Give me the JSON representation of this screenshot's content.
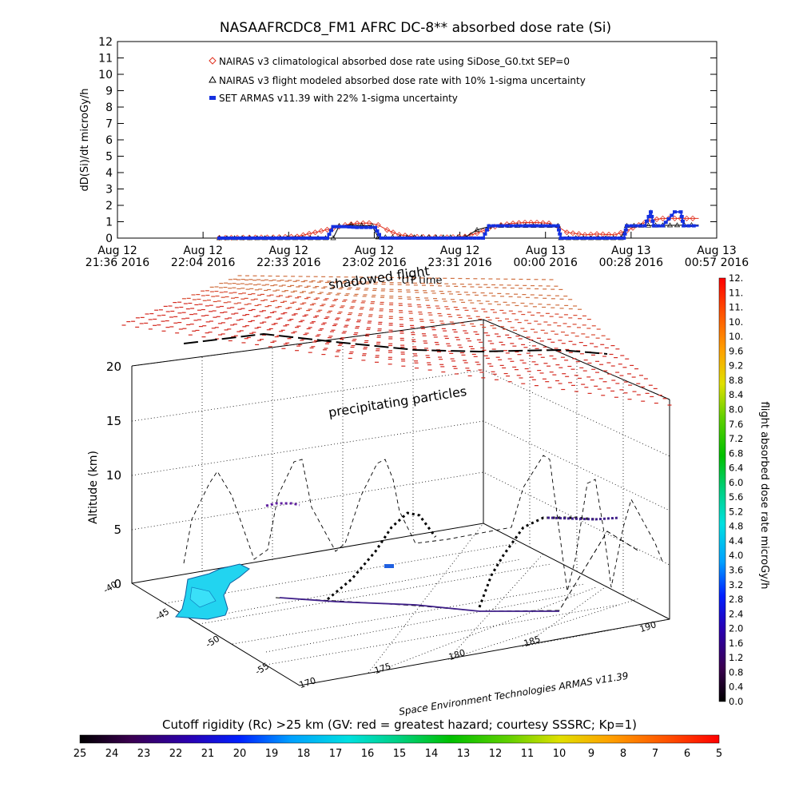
{
  "chart_data": [
    {
      "type": "line",
      "title": "NASAAFRCDC8_FM1 AFRC DC-8** absorbed dose rate (Si)",
      "ylabel": "dD(Si)/dt microGy/h",
      "xlabel": "UT time",
      "ylim": [
        0,
        12
      ],
      "yticks": [
        "0",
        "1",
        "2",
        "3",
        "4",
        "5",
        "6",
        "7",
        "8",
        "9",
        "10",
        "11",
        "12"
      ],
      "xtick_labels": [
        {
          "line1": "Aug 12",
          "line2": "21:36 2016"
        },
        {
          "line1": "Aug 12",
          "line2": "22:04 2016"
        },
        {
          "line1": "Aug 12",
          "line2": "22:33 2016"
        },
        {
          "line1": "Aug 12",
          "line2": "23:02 2016"
        },
        {
          "line1": "Aug 12",
          "line2": "23:31 2016"
        },
        {
          "line1": "Aug 13",
          "line2": "00:00 2016"
        },
        {
          "line1": "Aug 13",
          "line2": "00:28 2016"
        },
        {
          "line1": "Aug 13",
          "line2": "00:57 2016"
        }
      ],
      "series": [
        {
          "name": "NAIRAS v3 climatological absorbed dose rate using SiDose_G0.txt SEP=0",
          "color": "#e0301e",
          "marker": "diamond",
          "points": [
            [
              0.17,
              0.02
            ],
            [
              0.26,
              0.05
            ],
            [
              0.3,
              0.1
            ],
            [
              0.33,
              0.35
            ],
            [
              0.36,
              0.6
            ],
            [
              0.38,
              0.8
            ],
            [
              0.4,
              0.9
            ],
            [
              0.42,
              0.92
            ],
            [
              0.435,
              0.8
            ],
            [
              0.45,
              0.5
            ],
            [
              0.47,
              0.2
            ],
            [
              0.5,
              0.08
            ],
            [
              0.55,
              0.05
            ],
            [
              0.58,
              0.1
            ],
            [
              0.6,
              0.3
            ],
            [
              0.62,
              0.6
            ],
            [
              0.64,
              0.8
            ],
            [
              0.66,
              0.9
            ],
            [
              0.68,
              0.95
            ],
            [
              0.7,
              0.95
            ],
            [
              0.72,
              0.9
            ],
            [
              0.735,
              0.7
            ],
            [
              0.75,
              0.35
            ],
            [
              0.78,
              0.2
            ],
            [
              0.8,
              0.25
            ],
            [
              0.83,
              0.2
            ],
            [
              0.85,
              0.45
            ],
            [
              0.87,
              0.8
            ],
            [
              0.89,
              1.1
            ],
            [
              0.91,
              1.2
            ],
            [
              0.93,
              1.2
            ],
            [
              0.96,
              1.2
            ],
            [
              0.97,
              1.2
            ]
          ]
        },
        {
          "name": "NAIRAS v3 flight modeled absorbed dose rate with 10% 1-sigma uncertainty",
          "color": "#000000",
          "marker": "triangle",
          "points": [
            [
              0.17,
              0.0
            ],
            [
              0.36,
              0.0
            ],
            [
              0.37,
              0.75
            ],
            [
              0.39,
              0.8
            ],
            [
              0.425,
              0.75
            ],
            [
              0.435,
              0.05
            ],
            [
              0.58,
              0.05
            ],
            [
              0.6,
              0.5
            ],
            [
              0.62,
              0.7
            ],
            [
              0.64,
              0.75
            ],
            [
              0.735,
              0.75
            ],
            [
              0.74,
              0.0
            ],
            [
              0.84,
              0.0
            ],
            [
              0.85,
              0.75
            ],
            [
              0.97,
              0.8
            ]
          ]
        },
        {
          "name": "SET ARMAS v11.39 with 22% 1-sigma uncertainty",
          "color": "#1530e0",
          "marker": "square",
          "points": [
            [
              0.17,
              0.0
            ],
            [
              0.35,
              0.0
            ],
            [
              0.36,
              0.7
            ],
            [
              0.38,
              0.7
            ],
            [
              0.4,
              0.65
            ],
            [
              0.43,
              0.65
            ],
            [
              0.44,
              0.0
            ],
            [
              0.61,
              0.0
            ],
            [
              0.62,
              0.75
            ],
            [
              0.65,
              0.75
            ],
            [
              0.68,
              0.75
            ],
            [
              0.7,
              0.75
            ],
            [
              0.735,
              0.75
            ],
            [
              0.74,
              0.0
            ],
            [
              0.845,
              0.0
            ],
            [
              0.85,
              0.75
            ],
            [
              0.88,
              0.75
            ],
            [
              0.89,
              1.6
            ],
            [
              0.895,
              0.75
            ],
            [
              0.91,
              0.75
            ],
            [
              0.93,
              1.6
            ],
            [
              0.94,
              1.6
            ],
            [
              0.945,
              0.75
            ],
            [
              0.97,
              0.75
            ]
          ]
        }
      ]
    },
    {
      "type": "scatter",
      "zlabel": "Altitude (km)",
      "zticks": [
        "0",
        "5",
        "10",
        "15",
        "20"
      ],
      "y_ticks": [
        "-40",
        "-45",
        "-50",
        "-55"
      ],
      "x_ticks": [
        "170",
        "175",
        "180",
        "185",
        "190"
      ],
      "annotations": [
        "shadowed flight",
        "precipitating particles"
      ],
      "credit": "Space Environment Technologies ARMAS v11.39"
    },
    {
      "type": "heatmap",
      "colorbar_label": "flight absorbed dose rate microGy/h",
      "colorbar_ticks": [
        "0.0",
        "0.4",
        "0.8",
        "1.2",
        "1.6",
        "2.0",
        "2.4",
        "2.8",
        "3.2",
        "3.6",
        "4.0",
        "4.4",
        "4.8",
        "5.2",
        "5.6",
        "6.0",
        "6.4",
        "6.8",
        "7.2",
        "7.6",
        "8.0",
        "8.4",
        "8.8",
        "9.2",
        "9.6",
        "10.",
        "10.",
        "11.",
        "11.",
        "12."
      ],
      "range": [
        0,
        12
      ]
    },
    {
      "type": "heatmap",
      "colorbar_label": "Cutoff rigidity (Rc) >25 km (GV: red = greatest hazard; courtesy SSSRC; Kp=1)",
      "colorbar_ticks": [
        "25",
        "24",
        "23",
        "22",
        "21",
        "20",
        "19",
        "18",
        "17",
        "16",
        "15",
        "14",
        "13",
        "12",
        "11",
        "10",
        "9",
        "8",
        "7",
        "6",
        "5"
      ],
      "range": [
        25,
        5
      ]
    }
  ]
}
